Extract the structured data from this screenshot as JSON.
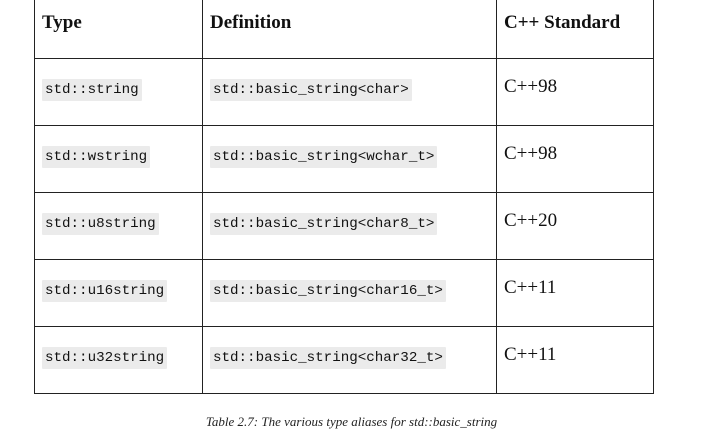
{
  "table": {
    "headers": [
      "Type",
      "Definition",
      "C++ Standard"
    ],
    "rows": [
      {
        "type": "std::string",
        "definition": "std::basic_string<char>",
        "standard": "C++98"
      },
      {
        "type": "std::wstring",
        "definition": "std::basic_string<wchar_t>",
        "standard": "C++98"
      },
      {
        "type": "std::u8string",
        "definition": "std::basic_string<char8_t>",
        "standard": "C++20"
      },
      {
        "type": "std::u16string",
        "definition": "std::basic_string<char16_t>",
        "standard": "C++11"
      },
      {
        "type": "std::u32string",
        "definition": "std::basic_string<char32_t>",
        "standard": "C++11"
      }
    ]
  },
  "caption": "Table 2.7: The various type aliases for std::basic_string"
}
